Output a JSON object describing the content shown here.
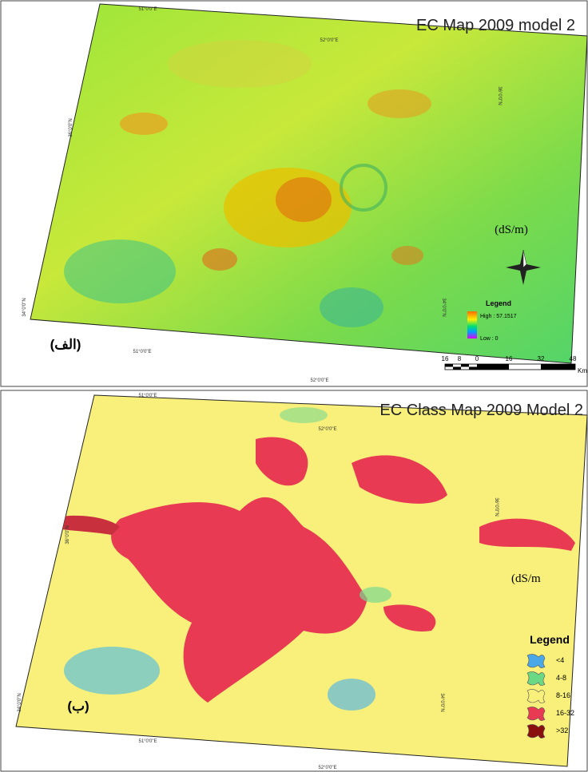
{
  "panel_a": {
    "title": "EC Map 2009 model 2",
    "label": "(الف)",
    "unit": "(dS/m)",
    "coords": {
      "top_left": "51°0'0\"E",
      "top_right": "52°0'0\"E",
      "left_top": "36°0'0\"N",
      "right_top": "36°0'0\"N",
      "left_bottom": "34°0'0\"N",
      "right_bottom": "34°0'0\"N",
      "bottom_left": "51°0'0\"E",
      "bottom_right": "52°0'0\"E"
    },
    "legend": {
      "title": "Legend",
      "high": "High : 57.1517",
      "low": "Low : 0"
    },
    "scale_bar": {
      "labels": [
        "16",
        "8",
        "0",
        "16",
        "32",
        "48"
      ],
      "unit": "Km"
    }
  },
  "panel_b": {
    "title": "EC Class Map 2009 Model 2",
    "label": "(ب)",
    "unit": "(dS/m",
    "coords": {
      "top_left": "51°0'0\"E",
      "top_right": "52°0'0\"E",
      "left_top": "36°0'0\"N",
      "right_top": "36°0'0\"N",
      "left_bottom": "34°0'0\"N",
      "right_bottom": "34°0'0\"N",
      "bottom_left": "51°0'0\"E",
      "bottom_right": "52°0'0\"E"
    },
    "legend": {
      "title": "Legend",
      "classes": [
        "<4",
        "4-8",
        "8-16",
        "16-32",
        ">32"
      ]
    }
  }
}
